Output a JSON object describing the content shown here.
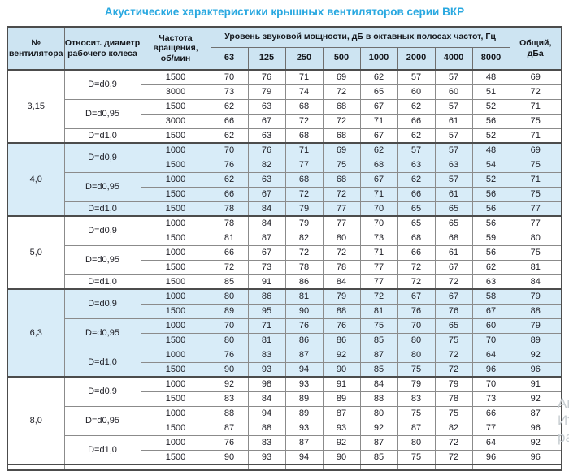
{
  "title": "Акустические характеристики крышных вентиляторов серии ВКР",
  "colors": {
    "title_blue": "#29a8e0",
    "header_bg": "#cde4f2",
    "shaded_section_bg": "#d8ecf8"
  },
  "table": {
    "header": {
      "fan": "№\nвентилятора",
      "diameter": "Относит. диаметр\nрабочего колеса",
      "rpm": "Частота\nвращения,\nоб/мин",
      "sound_power_group": "Уровень звуковой мощности, дБ в октавных полосах частот, Гц",
      "frequencies": [
        "63",
        "125",
        "250",
        "500",
        "1000",
        "2000",
        "4000",
        "8000"
      ],
      "total": "Общий,\nдБа"
    },
    "sections": [
      {
        "fan": "3,15",
        "shaded": false,
        "groups": [
          {
            "diameter": "D=d0,9",
            "rows": [
              {
                "rpm": "1500",
                "levels": [
                  70,
                  76,
                  71,
                  69,
                  62,
                  57,
                  57,
                  48
                ],
                "total": 69
              },
              {
                "rpm": "3000",
                "levels": [
                  73,
                  79,
                  74,
                  72,
                  65,
                  60,
                  60,
                  51
                ],
                "total": 72
              }
            ]
          },
          {
            "diameter": "D=d0,95",
            "rows": [
              {
                "rpm": "1500",
                "levels": [
                  62,
                  63,
                  68,
                  68,
                  67,
                  62,
                  57,
                  52
                ],
                "total": 71
              },
              {
                "rpm": "3000",
                "levels": [
                  66,
                  67,
                  72,
                  72,
                  71,
                  66,
                  61,
                  56
                ],
                "total": 75
              }
            ]
          },
          {
            "diameter": "D=d1,0",
            "rows": [
              {
                "rpm": "1500",
                "levels": [
                  62,
                  63,
                  68,
                  68,
                  67,
                  62,
                  57,
                  52
                ],
                "total": 71
              }
            ]
          }
        ]
      },
      {
        "fan": "4,0",
        "shaded": true,
        "groups": [
          {
            "diameter": "D=d0,9",
            "rows": [
              {
                "rpm": "1000",
                "levels": [
                  70,
                  76,
                  71,
                  69,
                  62,
                  57,
                  57,
                  48
                ],
                "total": 69
              },
              {
                "rpm": "1500",
                "levels": [
                  76,
                  82,
                  77,
                  75,
                  68,
                  63,
                  63,
                  54
                ],
                "total": 75
              }
            ]
          },
          {
            "diameter": "D=d0,95",
            "rows": [
              {
                "rpm": "1000",
                "levels": [
                  62,
                  63,
                  68,
                  68,
                  67,
                  62,
                  57,
                  52
                ],
                "total": 71
              },
              {
                "rpm": "1500",
                "levels": [
                  66,
                  67,
                  72,
                  72,
                  71,
                  66,
                  61,
                  56
                ],
                "total": 75
              }
            ]
          },
          {
            "diameter": "D=d1,0",
            "rows": [
              {
                "rpm": "1500",
                "levels": [
                  78,
                  84,
                  79,
                  77,
                  70,
                  65,
                  65,
                  56
                ],
                "total": 77
              }
            ]
          }
        ]
      },
      {
        "fan": "5,0",
        "shaded": false,
        "groups": [
          {
            "diameter": "D=d0,9",
            "rows": [
              {
                "rpm": "1000",
                "levels": [
                  78,
                  84,
                  79,
                  77,
                  70,
                  65,
                  65,
                  56
                ],
                "total": 77
              },
              {
                "rpm": "1500",
                "levels": [
                  81,
                  87,
                  82,
                  80,
                  73,
                  68,
                  68,
                  59
                ],
                "total": 80
              }
            ]
          },
          {
            "diameter": "D=d0,95",
            "rows": [
              {
                "rpm": "1000",
                "levels": [
                  66,
                  67,
                  72,
                  72,
                  71,
                  66,
                  61,
                  56
                ],
                "total": 75
              },
              {
                "rpm": "1500",
                "levels": [
                  72,
                  73,
                  78,
                  78,
                  77,
                  72,
                  67,
                  62
                ],
                "total": 81
              }
            ]
          },
          {
            "diameter": "D=d1,0",
            "rows": [
              {
                "rpm": "1500",
                "levels": [
                  85,
                  91,
                  86,
                  84,
                  77,
                  72,
                  72,
                  63
                ],
                "total": 84
              }
            ]
          }
        ]
      },
      {
        "fan": "6,3",
        "shaded": true,
        "groups": [
          {
            "diameter": "D=d0,9",
            "rows": [
              {
                "rpm": "1000",
                "levels": [
                  80,
                  86,
                  81,
                  79,
                  72,
                  67,
                  67,
                  58
                ],
                "total": 79
              },
              {
                "rpm": "1500",
                "levels": [
                  89,
                  95,
                  90,
                  88,
                  81,
                  76,
                  76,
                  67
                ],
                "total": 88
              }
            ]
          },
          {
            "diameter": "D=d0,95",
            "rows": [
              {
                "rpm": "1000",
                "levels": [
                  70,
                  71,
                  76,
                  76,
                  75,
                  70,
                  65,
                  60
                ],
                "total": 79
              },
              {
                "rpm": "1500",
                "levels": [
                  80,
                  81,
                  86,
                  86,
                  85,
                  80,
                  75,
                  70
                ],
                "total": 89
              }
            ]
          },
          {
            "diameter": "D=d1,0",
            "rows": [
              {
                "rpm": "1000",
                "levels": [
                  76,
                  83,
                  87,
                  92,
                  87,
                  80,
                  72,
                  64
                ],
                "total": 92
              },
              {
                "rpm": "1500",
                "levels": [
                  90,
                  93,
                  94,
                  90,
                  85,
                  75,
                  72,
                  96
                ],
                "total": 96
              }
            ]
          }
        ]
      },
      {
        "fan": "8,0",
        "shaded": false,
        "groups": [
          {
            "diameter": "D=d0,9",
            "rows": [
              {
                "rpm": "1000",
                "levels": [
                  92,
                  98,
                  93,
                  91,
                  84,
                  79,
                  79,
                  70
                ],
                "total": 91
              },
              {
                "rpm": "1500",
                "levels": [
                  83,
                  84,
                  89,
                  89,
                  88,
                  83,
                  78,
                  73
                ],
                "total": 92
              }
            ]
          },
          {
            "diameter": "D=d0,95",
            "rows": [
              {
                "rpm": "1000",
                "levels": [
                  88,
                  94,
                  89,
                  87,
                  80,
                  75,
                  75,
                  66
                ],
                "total": 87
              },
              {
                "rpm": "1500",
                "levels": [
                  87,
                  88,
                  93,
                  93,
                  92,
                  87,
                  82,
                  77
                ],
                "total": 96
              }
            ]
          },
          {
            "diameter": "D=d1,0",
            "rows": [
              {
                "rpm": "1000",
                "levels": [
                  76,
                  83,
                  87,
                  92,
                  87,
                  80,
                  72,
                  64
                ],
                "total": 92
              },
              {
                "rpm": "1500",
                "levels": [
                  90,
                  93,
                  94,
                  90,
                  85,
                  75,
                  72,
                  96
                ],
                "total": 96
              }
            ]
          }
        ]
      }
    ]
  },
  "watermark": [
    "Ак",
    "Ит",
    "ра"
  ]
}
